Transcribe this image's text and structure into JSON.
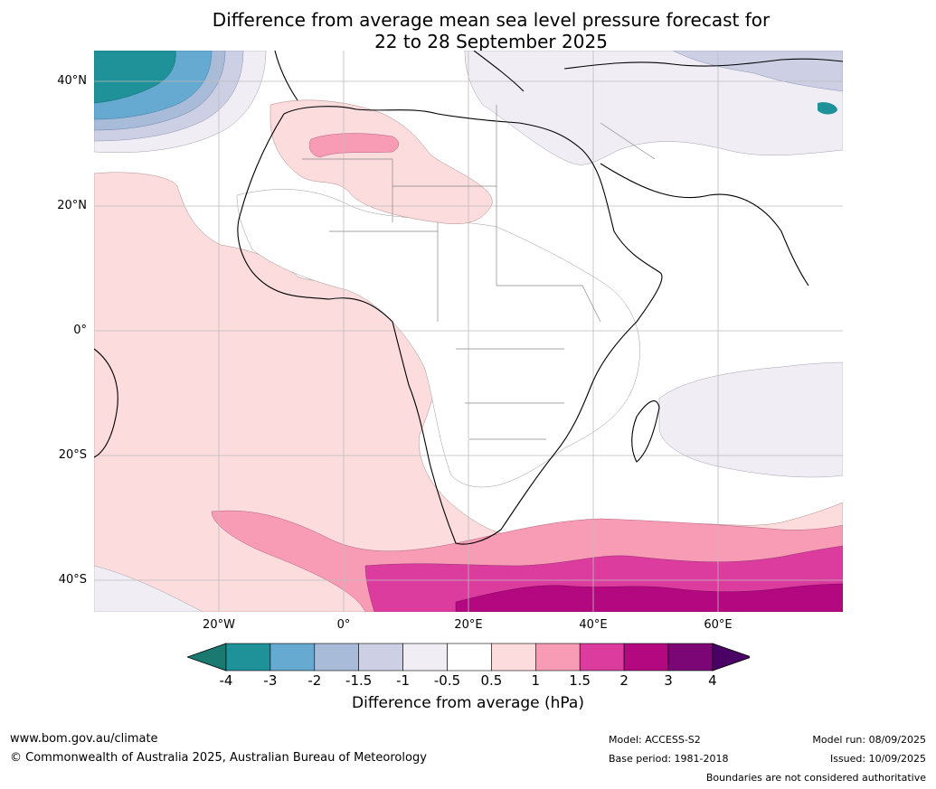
{
  "title": {
    "line1": "Difference from average mean sea level pressure forecast for",
    "line2": "22 to 28 September 2025"
  },
  "axes": {
    "lat_labels": [
      "40°N",
      "20°N",
      "0°",
      "20°S",
      "40°S"
    ],
    "lon_labels": [
      "20°W",
      "0°",
      "20°E",
      "40°E",
      "60°E"
    ],
    "extent": {
      "lon": [
        -40,
        80
      ],
      "lat": [
        -45,
        45
      ]
    }
  },
  "colorbar": {
    "label": "Difference from average (hPa)",
    "ticks": [
      "-4",
      "-3",
      "-2",
      "-1.5",
      "-1",
      "-0.5",
      "0.5",
      "1",
      "1.5",
      "2",
      "3",
      "4"
    ],
    "colors": [
      "#1a7a72",
      "#1e9199",
      "#66a9d1",
      "#a8bbd8",
      "#cdd0e4",
      "#f1edf4",
      "#ffffff",
      "#fcdcdc",
      "#f89cb6",
      "#dc3c9e",
      "#b3087f",
      "#7c0676",
      "#4a0064"
    ],
    "extend": "both"
  },
  "footer": {
    "website": "www.bom.gov.au/climate",
    "copyright": "© Commonwealth of Australia 2025, Australian Bureau of Meteorology",
    "model": "Model: ACCESS-S2",
    "base_period": "Base period: 1981-2018",
    "model_run": "Model run: 08/09/2025",
    "issued": "Issued: 10/09/2025",
    "disclaimer": "Boundaries are not considered authoritative"
  }
}
